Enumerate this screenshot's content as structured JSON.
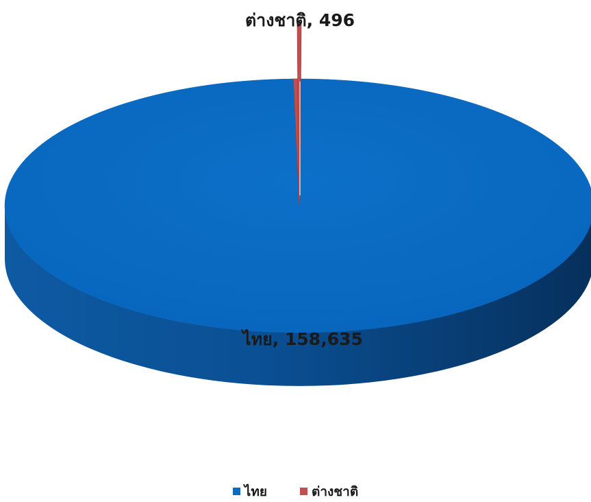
{
  "chart_data": {
    "type": "pie",
    "style": "3d",
    "categories": [
      "ไทย",
      "ต่างชาติ"
    ],
    "values": [
      158635,
      496
    ],
    "colors": [
      "#0a6cc4",
      "#c0504d"
    ],
    "data_labels": [
      "ไทย, 158,635",
      "ต่างชาติ, 496"
    ],
    "legend_position": "bottom",
    "title": ""
  },
  "legend": {
    "items": [
      {
        "label": "ไทย",
        "color": "#0a6cc4"
      },
      {
        "label": "ต่างชาติ",
        "color": "#c0504d"
      }
    ]
  }
}
